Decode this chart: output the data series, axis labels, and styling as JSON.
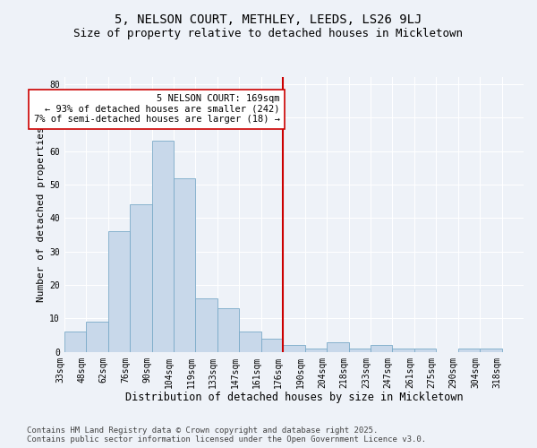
{
  "title": "5, NELSON COURT, METHLEY, LEEDS, LS26 9LJ",
  "subtitle": "Size of property relative to detached houses in Mickletown",
  "xlabel": "Distribution of detached houses by size in Mickletown",
  "ylabel": "Number of detached properties",
  "categories": [
    "33sqm",
    "48sqm",
    "62sqm",
    "76sqm",
    "90sqm",
    "104sqm",
    "119sqm",
    "133sqm",
    "147sqm",
    "161sqm",
    "176sqm",
    "190sqm",
    "204sqm",
    "218sqm",
    "233sqm",
    "247sqm",
    "261sqm",
    "275sqm",
    "290sqm",
    "304sqm",
    "318sqm"
  ],
  "bar_heights": [
    6,
    9,
    36,
    44,
    63,
    52,
    16,
    13,
    6,
    4,
    2,
    1,
    3,
    1,
    2,
    1,
    1,
    0,
    1,
    1,
    0
  ],
  "bar_color": "#c8d8ea",
  "bar_edge_color": "#7aaac8",
  "vline_idx": 10,
  "vline_color": "#cc0000",
  "annotation_text": "5 NELSON COURT: 169sqm\n← 93% of detached houses are smaller (242)\n7% of semi-detached houses are larger (18) →",
  "annotation_box_color": "#ffffff",
  "annotation_box_edge_color": "#cc0000",
  "ylim": [
    0,
    82
  ],
  "yticks": [
    0,
    10,
    20,
    30,
    40,
    50,
    60,
    70,
    80
  ],
  "background_color": "#eef2f8",
  "footer_text": "Contains HM Land Registry data © Crown copyright and database right 2025.\nContains public sector information licensed under the Open Government Licence v3.0.",
  "title_fontsize": 10,
  "subtitle_fontsize": 9,
  "xlabel_fontsize": 8.5,
  "ylabel_fontsize": 8,
  "tick_fontsize": 7,
  "annotation_fontsize": 7.5,
  "footer_fontsize": 6.5
}
